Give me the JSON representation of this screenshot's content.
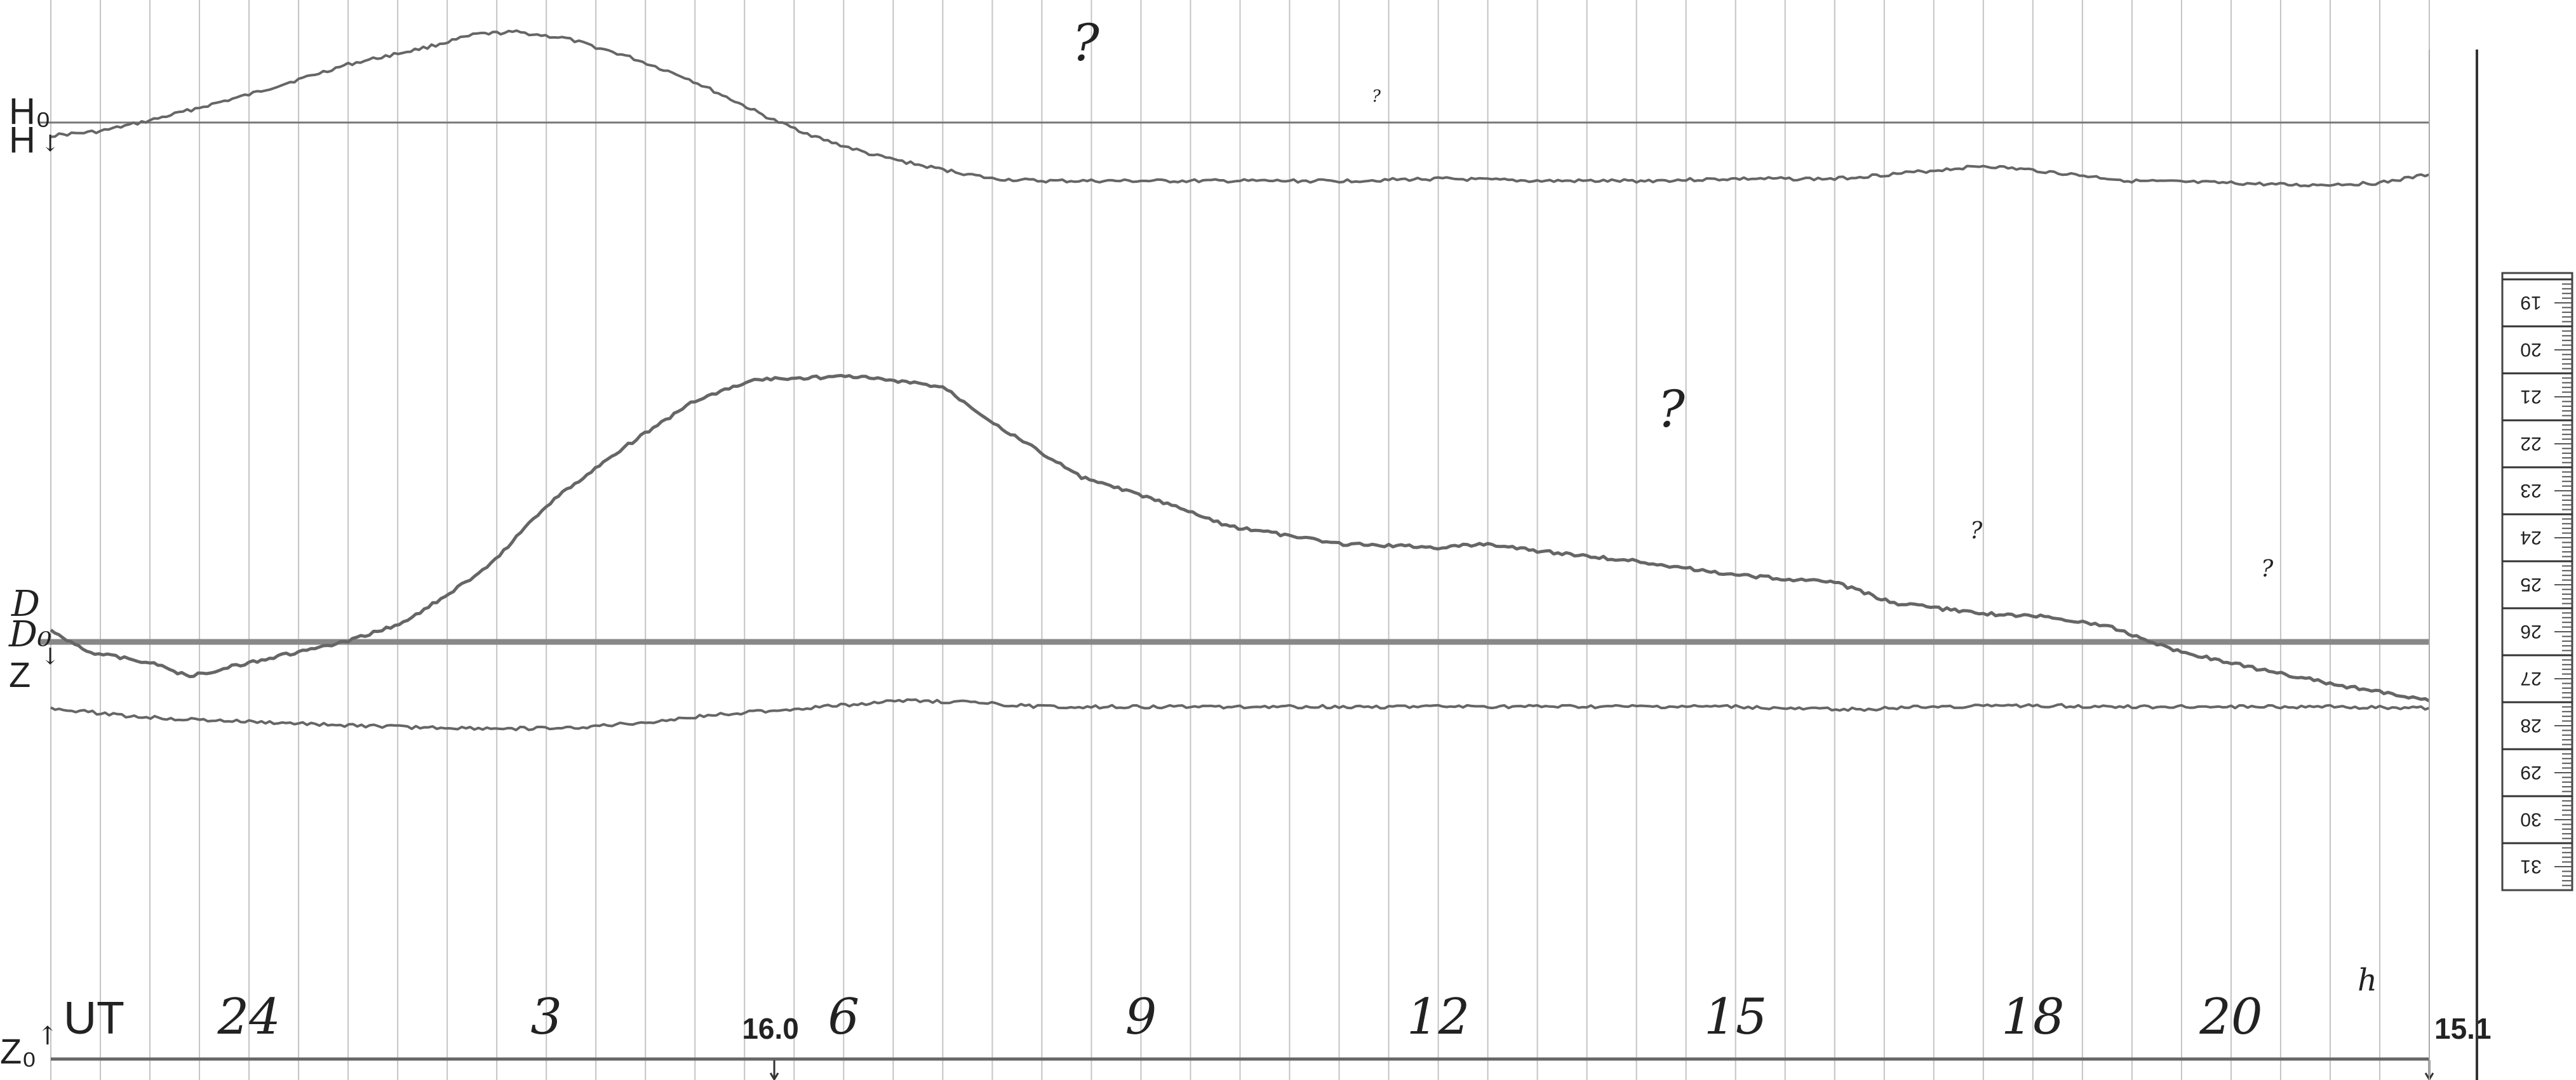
{
  "chart_data": {
    "type": "line",
    "title": "",
    "x_axis": {
      "label": "UT",
      "unit_suffix": "h",
      "range_hours_from_start": [
        0,
        24
      ],
      "hour_labels": [
        {
          "text": "24",
          "hours": 2.0
        },
        {
          "text": "3",
          "hours": 5.0
        },
        {
          "text": "6",
          "hours": 8.0
        },
        {
          "text": "9",
          "hours": 11.0
        },
        {
          "text": "12",
          "hours": 14.0
        },
        {
          "text": "15",
          "hours": 17.0
        },
        {
          "text": "18",
          "hours": 20.0
        },
        {
          "text": "20",
          "hours": 22.0
        }
      ],
      "grid": true
    },
    "baseline_labels": [
      "H₀",
      "D₀",
      "Z₀"
    ],
    "trace_labels": [
      "H",
      "D",
      "Z"
    ],
    "baseline_arrow_marks": [
      "↓",
      "↓",
      "↑"
    ],
    "date_marks": [
      {
        "text": "16.0",
        "hours": 7.3
      },
      {
        "text": "15.1",
        "hours": 24.0
      }
    ],
    "question_marks": [
      "?",
      "?",
      "?",
      "?",
      "?"
    ],
    "y_units": "relative trace offset (0–100)",
    "series": [
      {
        "name": "H",
        "baseline": 50,
        "points": [
          [
            0,
            46
          ],
          [
            0.5,
            48
          ],
          [
            1.0,
            53
          ],
          [
            2.0,
            65
          ],
          [
            3.0,
            79
          ],
          [
            3.8,
            87
          ],
          [
            4.3,
            93
          ],
          [
            4.7,
            94
          ],
          [
            5.2,
            91
          ],
          [
            5.8,
            83
          ],
          [
            6.4,
            73
          ],
          [
            6.9,
            62
          ],
          [
            7.3,
            53
          ],
          [
            7.8,
            44
          ],
          [
            8.3,
            37
          ],
          [
            8.8,
            32
          ],
          [
            9.5,
            26
          ],
          [
            10,
            25
          ],
          [
            11,
            25
          ],
          [
            12,
            25
          ],
          [
            13,
            25
          ],
          [
            14,
            26
          ],
          [
            15,
            25
          ],
          [
            16,
            25
          ],
          [
            17,
            26
          ],
          [
            18,
            26
          ],
          [
            18.8,
            29
          ],
          [
            19.5,
            32
          ],
          [
            20,
            30
          ],
          [
            20.6,
            27
          ],
          [
            21,
            25
          ],
          [
            22,
            24
          ],
          [
            22.7,
            23
          ],
          [
            23.5,
            24
          ],
          [
            24,
            28
          ]
        ]
      },
      {
        "name": "D",
        "baseline": 6,
        "points": [
          [
            0,
            12
          ],
          [
            0.4,
            6
          ],
          [
            1.0,
            3
          ],
          [
            1.4,
            -1
          ],
          [
            2.0,
            3
          ],
          [
            3.0,
            9
          ],
          [
            3.6,
            15
          ],
          [
            4.4,
            30
          ],
          [
            5.0,
            48
          ],
          [
            5.7,
            63
          ],
          [
            6.5,
            78
          ],
          [
            7.1,
            84
          ],
          [
            8.1,
            85
          ],
          [
            9.0,
            82
          ],
          [
            9.6,
            70
          ],
          [
            10.4,
            56
          ],
          [
            11.1,
            50
          ],
          [
            11.9,
            42
          ],
          [
            13,
            37
          ],
          [
            14,
            36
          ],
          [
            14.5,
            37
          ],
          [
            15,
            35
          ],
          [
            16,
            32
          ],
          [
            17,
            28
          ],
          [
            18,
            26
          ],
          [
            18.6,
            20
          ],
          [
            19.5,
            17
          ],
          [
            20.2,
            16
          ],
          [
            20.8,
            13
          ],
          [
            21.5,
            6
          ],
          [
            22.3,
            1
          ],
          [
            23,
            -3
          ],
          [
            24,
            -8
          ]
        ]
      },
      {
        "name": "Z",
        "baseline": 50,
        "points": [
          [
            0,
            50
          ],
          [
            0.8,
            43
          ],
          [
            1.5,
            40
          ],
          [
            2.5,
            37
          ],
          [
            3.6,
            34
          ],
          [
            4.4,
            33
          ],
          [
            5.2,
            33
          ],
          [
            6.0,
            38
          ],
          [
            6.8,
            45
          ],
          [
            7.5,
            49
          ],
          [
            8.1,
            53
          ],
          [
            8.6,
            56
          ],
          [
            9.2,
            55
          ],
          [
            10,
            51
          ],
          [
            11,
            51
          ],
          [
            12,
            51
          ],
          [
            13,
            51
          ],
          [
            14,
            51
          ],
          [
            15,
            51
          ],
          [
            16,
            51
          ],
          [
            17,
            51
          ],
          [
            17.6,
            49
          ],
          [
            18.3,
            49
          ],
          [
            19,
            51
          ],
          [
            20,
            52
          ],
          [
            21,
            51
          ],
          [
            22,
            51
          ],
          [
            23,
            51
          ],
          [
            24,
            50
          ]
        ]
      }
    ]
  },
  "scale_ruler": {
    "labels": [
      "19",
      "20",
      "21",
      "22",
      "23",
      "24",
      "25",
      "26",
      "27",
      "28",
      "29",
      "30",
      "31"
    ]
  }
}
